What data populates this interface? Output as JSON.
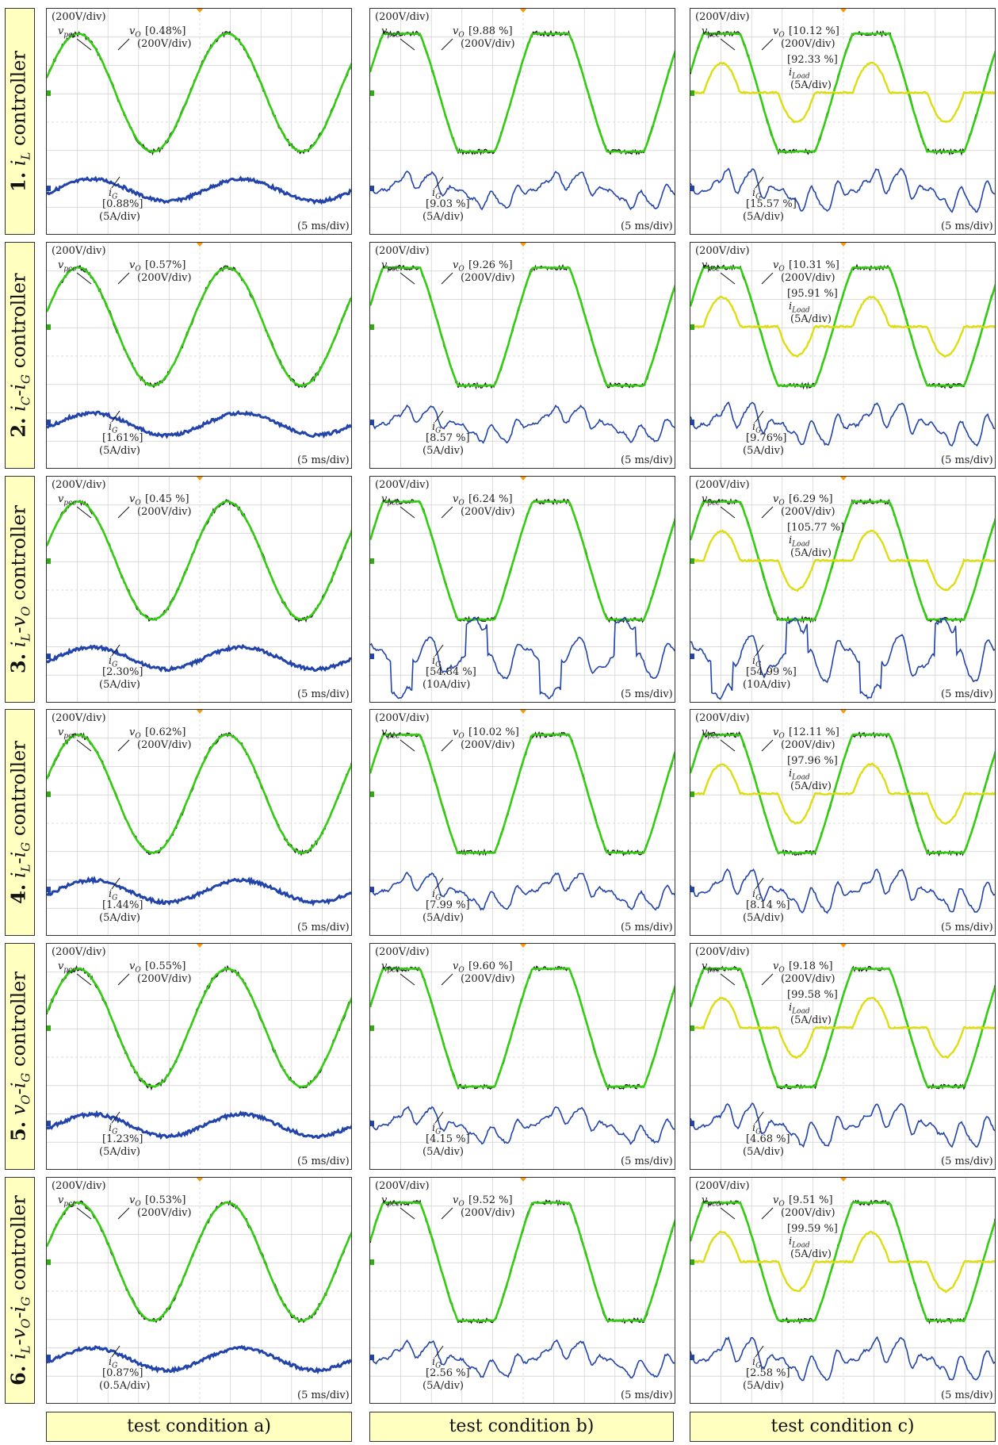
{
  "rows": [
    {
      "number": "1.",
      "label": "i_L controller"
    },
    {
      "number": "2.",
      "label": "i_C-i_G controller"
    },
    {
      "number": "3.",
      "label": "i_L-v_O controller"
    },
    {
      "number": "4.",
      "label": "i_L-i_G controller"
    },
    {
      "number": "5.",
      "label": "v_O-i_G controller"
    },
    {
      "number": "6.",
      "label": "i_L-v_O-i_G controller"
    }
  ],
  "columns": [
    "test condition a)",
    "test condition b)",
    "test condition c)"
  ],
  "scales": {
    "voltage": "(200V/div)",
    "time": "(5 ms/div)"
  },
  "signal_symbols": {
    "pcc": "v_pcc",
    "output": "v_O",
    "grid": "i_G",
    "load": "i_Load"
  },
  "colors": {
    "v_pcc": "#1a1a1a",
    "v_O": "#33cc11",
    "i_G": "#2244aa",
    "i_Load": "#dddd11",
    "label_fill": "#ffffc0",
    "grid": "#cfcfcf"
  },
  "chart_data": {
    "type": "line",
    "title": "",
    "xlabel": "",
    "ylabel": "",
    "panels": [
      {
        "row": 1,
        "col": "a",
        "vO_thd": "[0.48%]",
        "vO_scale": "(200V/div)",
        "iG_thd": "[0.88%]",
        "iG_scale": "(5A/div)"
      },
      {
        "row": 1,
        "col": "b",
        "vO_thd": "[9.88 %]",
        "vO_scale": "(200V/div)",
        "iG_thd": "[9.03 %]",
        "iG_scale": "(5A/div)"
      },
      {
        "row": 1,
        "col": "c",
        "vO_thd": "[10.12 %]",
        "vO_scale": "(200V/div)",
        "iLoad_thd": "[92.33 %]",
        "iLoad_scale": "(5A/div)",
        "iG_thd": "[15.57 %]",
        "iG_scale": "(5A/div)"
      },
      {
        "row": 2,
        "col": "a",
        "vO_thd": "[0.57%]",
        "vO_scale": "(200V/div)",
        "iG_thd": "[1.61%]",
        "iG_scale": "(5A/div)"
      },
      {
        "row": 2,
        "col": "b",
        "vO_thd": "[9.26 %]",
        "vO_scale": "(200V/div)",
        "iG_thd": "[8.57 %]",
        "iG_scale": "(5A/div)"
      },
      {
        "row": 2,
        "col": "c",
        "vO_thd": "[10.31 %]",
        "vO_scale": "(200V/div)",
        "iLoad_thd": "[95.91 %]",
        "iLoad_scale": "(5A/div)",
        "iG_thd": "[9.76%]",
        "iG_scale": "(5A/div)"
      },
      {
        "row": 3,
        "col": "a",
        "vO_thd": "[0.45 %]",
        "vO_scale": "(200V/div)",
        "iG_thd": "[2.30%]",
        "iG_scale": "(5A/div)"
      },
      {
        "row": 3,
        "col": "b",
        "vO_thd": "[6.24 %]",
        "vO_scale": "(200V/div)",
        "iG_thd": "[54.84 %]",
        "iG_scale": "(10A/div)"
      },
      {
        "row": 3,
        "col": "c",
        "vO_thd": "[6.29 %]",
        "vO_scale": "(200V/div)",
        "iLoad_thd": "[105.77 %]",
        "iLoad_scale": "(5A/div)",
        "iG_thd": "[54.99 %]",
        "iG_scale": "(10A/div)"
      },
      {
        "row": 4,
        "col": "a",
        "vO_thd": "[0.62%]",
        "vO_scale": "(200V/div)",
        "iG_thd": "[1.44%]",
        "iG_scale": "(5A/div)"
      },
      {
        "row": 4,
        "col": "b",
        "vO_thd": "[10.02 %]",
        "vO_scale": "(200V/div)",
        "iG_thd": "[7.99 %]",
        "iG_scale": "(5A/div)"
      },
      {
        "row": 4,
        "col": "c",
        "vO_thd": "[12.11 %]",
        "vO_scale": "(200V/div)",
        "iLoad_thd": "[97.96 %]",
        "iLoad_scale": "(5A/div)",
        "iG_thd": "[8.14 %]",
        "iG_scale": "(5A/div)"
      },
      {
        "row": 5,
        "col": "a",
        "vO_thd": "[0.55%]",
        "vO_scale": "(200V/div)",
        "iG_thd": "[1.23%]",
        "iG_scale": "(5A/div)"
      },
      {
        "row": 5,
        "col": "b",
        "vO_thd": "[9.60 %]",
        "vO_scale": "(200V/div)",
        "iG_thd": "[4.15 %]",
        "iG_scale": "(5A/div)"
      },
      {
        "row": 5,
        "col": "c",
        "vO_thd": "[9.18 %]",
        "vO_scale": "(200V/div)",
        "iLoad_thd": "[99.58 %]",
        "iLoad_scale": "(5A/div)",
        "iG_thd": "[4.68 %]",
        "iG_scale": "(5A/div)"
      },
      {
        "row": 6,
        "col": "a",
        "vO_thd": "[0.53%]",
        "vO_scale": "(200V/div)",
        "iG_thd": "[0.87%]",
        "iG_scale": "(0.5A/div)"
      },
      {
        "row": 6,
        "col": "b",
        "vO_thd": "[9.52 %]",
        "vO_scale": "(200V/div)",
        "iG_thd": "[2.56 %]",
        "iG_scale": "(5A/div)"
      },
      {
        "row": 6,
        "col": "c",
        "vO_thd": "[9.51 %]",
        "vO_scale": "(200V/div)",
        "iLoad_thd": "[99.59 %]",
        "iLoad_scale": "(5A/div)",
        "iG_thd": "[2.58 %]",
        "iG_scale": "(5A/div)"
      }
    ]
  }
}
